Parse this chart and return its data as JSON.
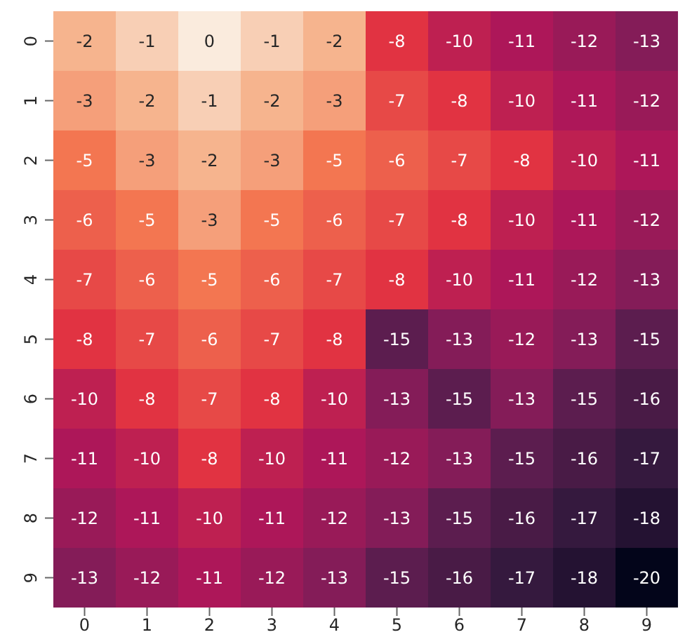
{
  "chart_data": {
    "type": "heatmap",
    "categories": [
      "0",
      "1",
      "2",
      "3",
      "4",
      "5",
      "6",
      "7",
      "8",
      "9"
    ],
    "y_categories": [
      "0",
      "1",
      "2",
      "3",
      "4",
      "5",
      "6",
      "7",
      "8",
      "9"
    ],
    "data_labels": true,
    "cells": [
      [
        -2,
        -1,
        0,
        -1,
        -2,
        -8,
        -10,
        -11,
        -12,
        -13
      ],
      [
        -3,
        -2,
        -1,
        -2,
        -3,
        -7,
        -8,
        -10,
        -11,
        -12
      ],
      [
        -5,
        -3,
        -2,
        -3,
        -5,
        -6,
        -7,
        -8,
        -10,
        -11
      ],
      [
        -6,
        -5,
        -3,
        -5,
        -6,
        -7,
        -8,
        -10,
        -11,
        -12
      ],
      [
        -7,
        -6,
        -5,
        -6,
        -7,
        -8,
        -10,
        -11,
        -12,
        -13
      ],
      [
        -8,
        -7,
        -6,
        -7,
        -8,
        -15,
        -13,
        -12,
        -13,
        -15
      ],
      [
        -10,
        -8,
        -7,
        -8,
        -10,
        -13,
        -15,
        -13,
        -15,
        -16
      ],
      [
        -11,
        -10,
        -8,
        -10,
        -11,
        -12,
        -13,
        -15,
        -16,
        -17
      ],
      [
        -12,
        -11,
        -10,
        -11,
        -12,
        -13,
        -15,
        -16,
        -17,
        -18
      ],
      [
        -13,
        -12,
        -11,
        -12,
        -13,
        -15,
        -16,
        -17,
        -18,
        -20
      ]
    ]
  }
}
